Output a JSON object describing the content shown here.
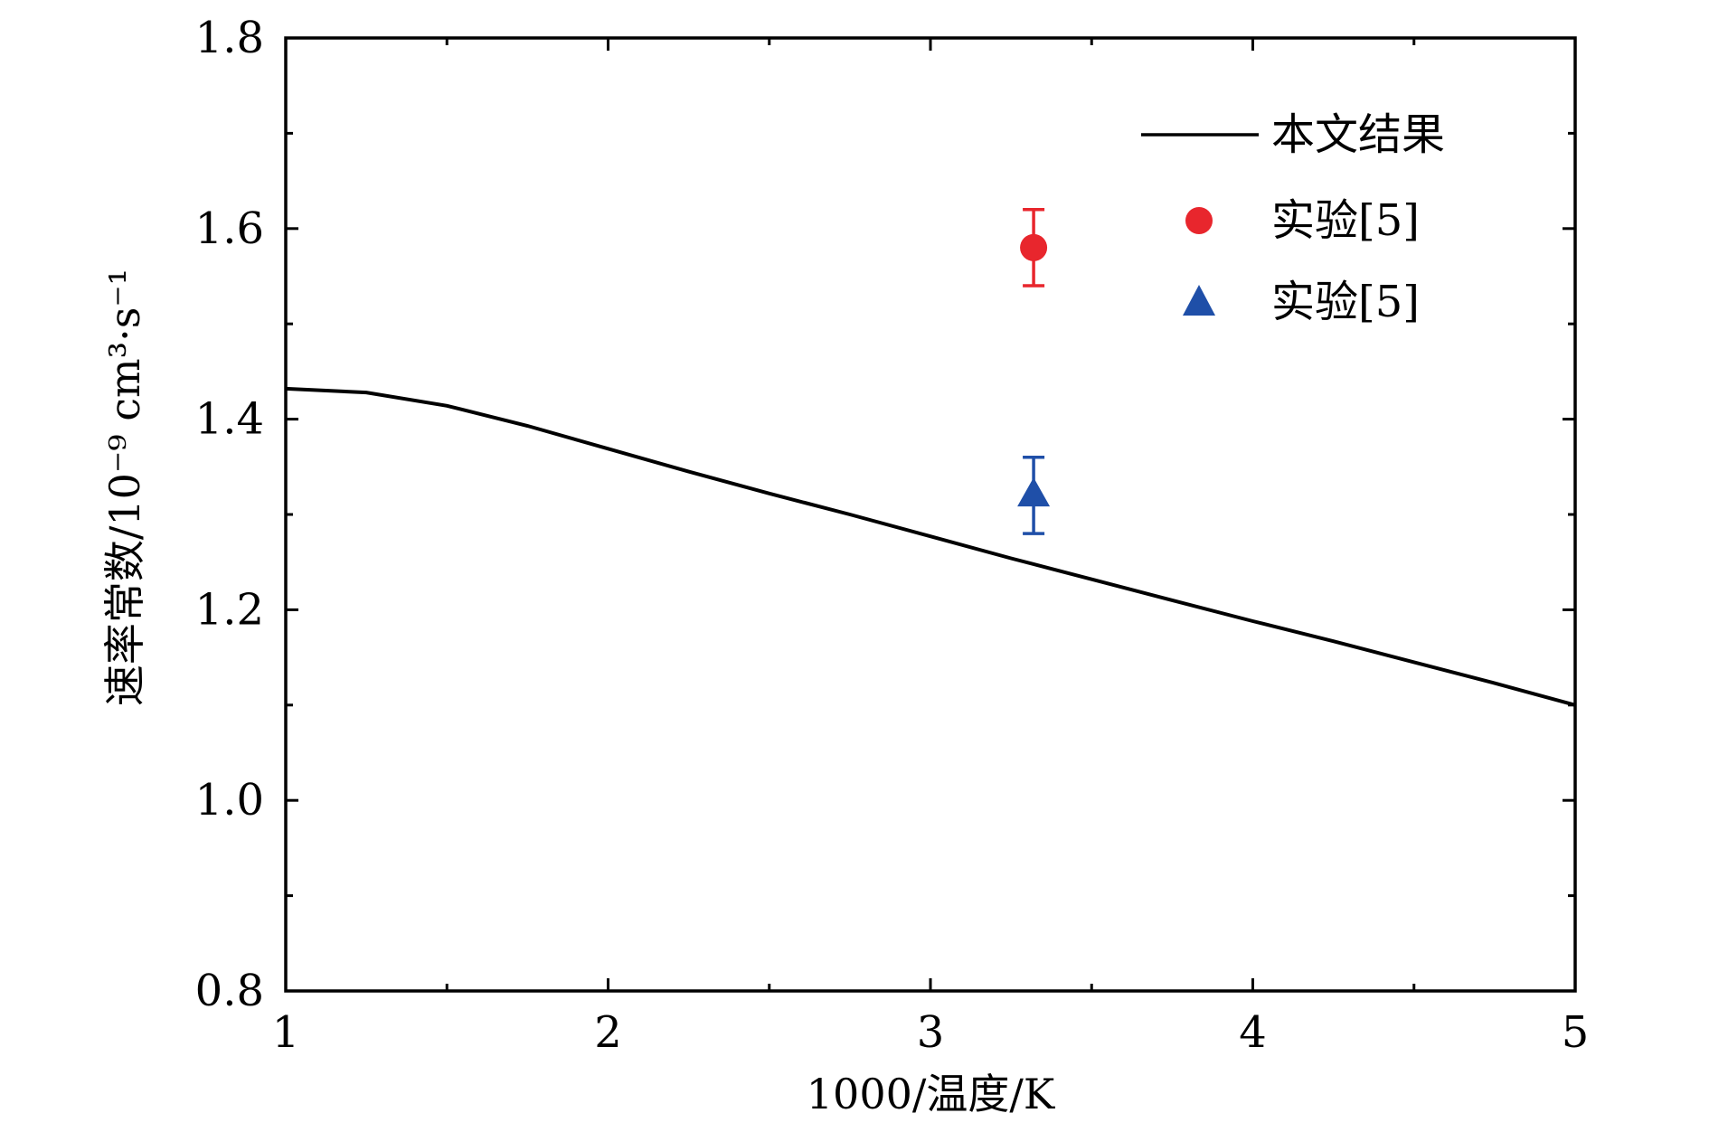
{
  "chart_data": {
    "type": "line",
    "xlabel": "1000/温度/K",
    "ylabel": "速率常数/10⁻⁹ cm³·s⁻¹",
    "xlim": [
      1,
      5
    ],
    "ylim": [
      0.8,
      1.8
    ],
    "xticks": [
      1,
      2,
      3,
      4,
      5
    ],
    "yticks": [
      0.8,
      1.0,
      1.2,
      1.4,
      1.6,
      1.8
    ],
    "xtick_labels": [
      "1",
      "2",
      "3",
      "4",
      "5"
    ],
    "ytick_labels": [
      "0.8",
      "1.0",
      "1.2",
      "1.4",
      "1.6",
      "1.8"
    ],
    "grid": false,
    "legend_position": "top-right",
    "series": [
      {
        "name": "本文结果",
        "kind": "line",
        "color": "#000000",
        "x": [
          1.0,
          1.25,
          1.5,
          1.75,
          2.0,
          2.25,
          2.5,
          2.75,
          3.0,
          3.25,
          3.5,
          3.75,
          4.0,
          4.25,
          4.5,
          4.75,
          5.0
        ],
        "y": [
          1.432,
          1.428,
          1.414,
          1.393,
          1.369,
          1.345,
          1.322,
          1.3,
          1.277,
          1.254,
          1.232,
          1.21,
          1.188,
          1.167,
          1.145,
          1.123,
          1.1
        ]
      },
      {
        "name": "实验[5]",
        "kind": "scatter",
        "marker": "circle",
        "color": "#e8262d",
        "x": [
          3.32
        ],
        "y": [
          1.58
        ],
        "yerr": [
          0.04
        ]
      },
      {
        "name": "实验[5]",
        "kind": "scatter",
        "marker": "triangle",
        "color": "#1f4fa8",
        "x": [
          3.32
        ],
        "y": [
          1.32
        ],
        "yerr": [
          0.04
        ]
      }
    ]
  }
}
